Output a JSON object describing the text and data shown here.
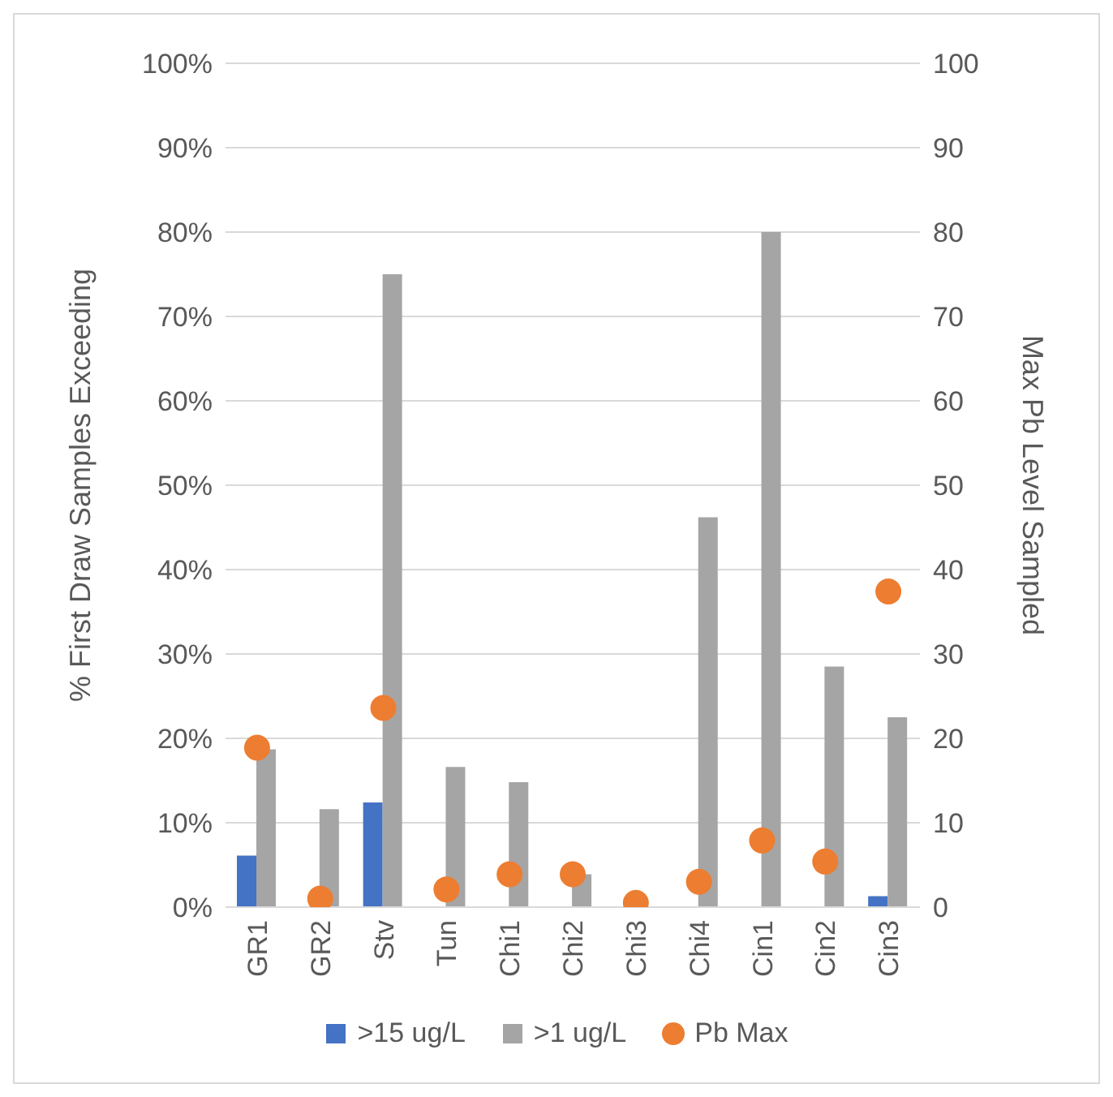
{
  "chart_data": {
    "type": "bar",
    "categories": [
      "GR1",
      "GR2",
      "Stv",
      "Tun",
      "Chi1",
      "Chi2",
      "Chi3",
      "Chi4",
      "Cin1",
      "Cin2",
      "Cin3"
    ],
    "series": [
      {
        "name": ">15 ug/L",
        "color": "#4472c4",
        "values": [
          6.1,
          0,
          12.4,
          0,
          0,
          0,
          0,
          0,
          0,
          0,
          1.3
        ]
      },
      {
        "name": ">1 ug/L",
        "color": "#a5a5a5",
        "values": [
          18.7,
          11.6,
          75,
          16.6,
          14.8,
          3.9,
          0,
          46.2,
          80,
          28.5,
          22.5
        ]
      },
      {
        "name": "Pb Max",
        "type": "scatter",
        "axis": "y2",
        "color": "#ed7d31",
        "marker": "circle",
        "values": [
          18.9,
          1,
          23.6,
          2.1,
          3.9,
          3.9,
          0.5,
          3,
          7.9,
          5.4,
          37.4
        ]
      }
    ],
    "ylabel": "% First Draw Samples Exceeding",
    "y2label": "Max Pb Level Sampled",
    "ylim": [
      0,
      100
    ],
    "yticks": [
      {
        "value": 0,
        "label": "0%"
      },
      {
        "value": 10,
        "label": "10%"
      },
      {
        "value": 20,
        "label": "20%"
      },
      {
        "value": 30,
        "label": "30%"
      },
      {
        "value": 40,
        "label": "40%"
      },
      {
        "value": 50,
        "label": "50%"
      },
      {
        "value": 60,
        "label": "60%"
      },
      {
        "value": 70,
        "label": "70%"
      },
      {
        "value": 80,
        "label": "80%"
      },
      {
        "value": 90,
        "label": "90%"
      },
      {
        "value": 100,
        "label": "100%"
      }
    ],
    "y2lim": [
      0,
      100
    ],
    "y2ticks": [
      0,
      10,
      20,
      30,
      40,
      50,
      60,
      70,
      80,
      90,
      100
    ],
    "grid": "y",
    "legend": "bottom"
  }
}
